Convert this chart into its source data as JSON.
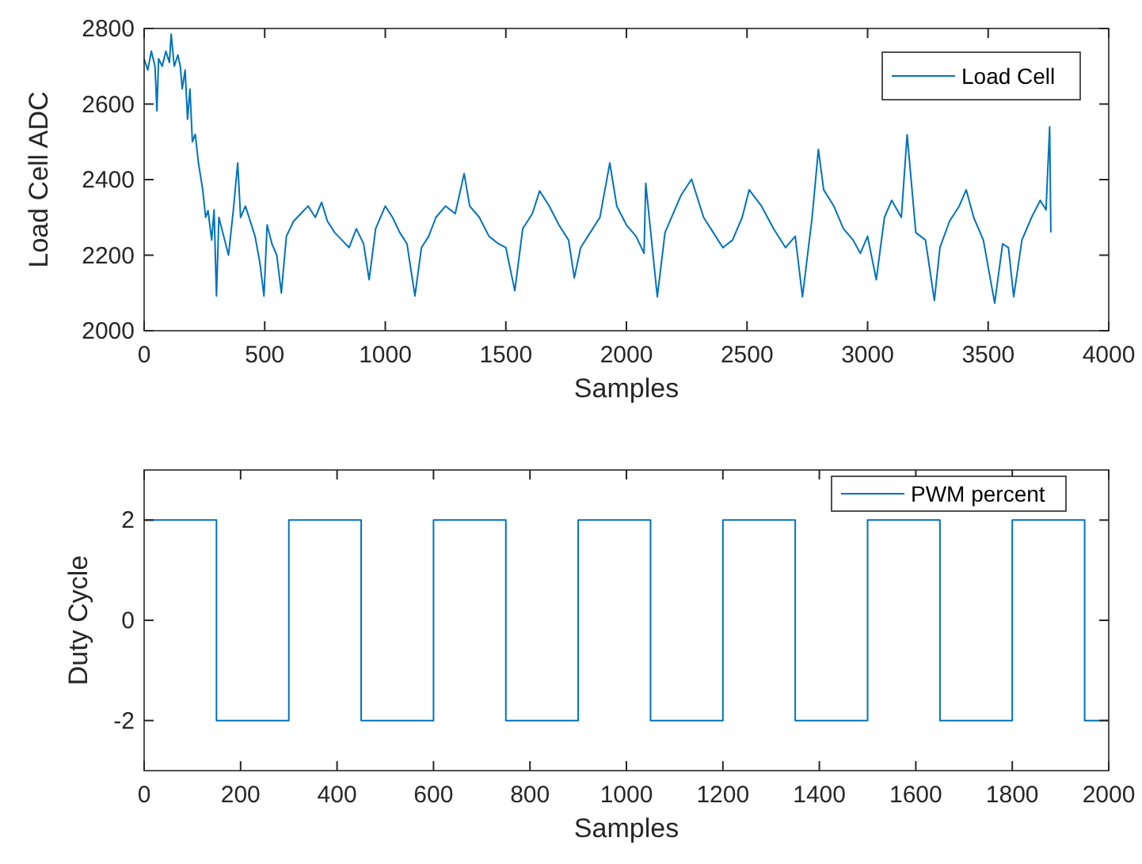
{
  "chart_data": [
    {
      "type": "line",
      "xlabel": "Samples",
      "ylabel": "Load Cell ADC",
      "xlim": [
        0,
        4000
      ],
      "ylim": [
        2000,
        2800
      ],
      "xticks": [
        0,
        500,
        1000,
        1500,
        2000,
        2500,
        3000,
        3500,
        4000
      ],
      "yticks": [
        2000,
        2200,
        2400,
        2600,
        2800
      ],
      "grid": false,
      "legend": "top right",
      "series": [
        {
          "name": "Load Cell",
          "color": "#0072bd",
          "x": [
            0,
            15,
            30,
            45,
            53,
            60,
            75,
            90,
            105,
            112,
            125,
            140,
            150,
            158,
            170,
            180,
            190,
            200,
            212,
            225,
            243,
            255,
            265,
            280,
            290,
            300,
            310,
            330,
            350,
            370,
            388,
            400,
            420,
            440,
            460,
            480,
            497,
            510,
            530,
            550,
            569,
            590,
            620,
            650,
            680,
            710,
            736,
            760,
            790,
            820,
            850,
            880,
            910,
            933,
            960,
            1000,
            1030,
            1060,
            1090,
            1123,
            1150,
            1180,
            1210,
            1250,
            1290,
            1327,
            1350,
            1390,
            1430,
            1470,
            1500,
            1537,
            1570,
            1610,
            1640,
            1680,
            1720,
            1760,
            1784,
            1810,
            1850,
            1890,
            1931,
            1960,
            2000,
            2040,
            2073,
            2080,
            2128,
            2160,
            2226,
            2270,
            2320,
            2360,
            2400,
            2440,
            2480,
            2509,
            2560,
            2610,
            2660,
            2700,
            2730,
            2770,
            2796,
            2818,
            2860,
            2900,
            2940,
            2970,
            3000,
            3036,
            3070,
            3100,
            3140,
            3164,
            3200,
            3240,
            3277,
            3300,
            3340,
            3380,
            3409,
            3440,
            3480,
            3527,
            3560,
            3584,
            3606,
            3640,
            3680,
            3716,
            3740,
            3755,
            3760
          ],
          "values": [
            2720,
            2690,
            2740,
            2700,
            2582,
            2720,
            2700,
            2740,
            2710,
            2785,
            2700,
            2730,
            2700,
            2640,
            2690,
            2560,
            2640,
            2500,
            2520,
            2445,
            2373,
            2300,
            2318,
            2240,
            2320,
            2092,
            2300,
            2250,
            2200,
            2320,
            2444,
            2300,
            2330,
            2290,
            2250,
            2180,
            2092,
            2280,
            2230,
            2200,
            2100,
            2250,
            2290,
            2310,
            2330,
            2300,
            2340,
            2290,
            2260,
            2240,
            2220,
            2270,
            2230,
            2135,
            2270,
            2330,
            2300,
            2260,
            2230,
            2092,
            2220,
            2250,
            2300,
            2330,
            2310,
            2416,
            2330,
            2300,
            2250,
            2230,
            2220,
            2106,
            2270,
            2310,
            2370,
            2330,
            2280,
            2240,
            2140,
            2220,
            2260,
            2300,
            2444,
            2330,
            2280,
            2250,
            2205,
            2390,
            2090,
            2260,
            2358,
            2401,
            2300,
            2260,
            2220,
            2240,
            2300,
            2373,
            2330,
            2270,
            2220,
            2250,
            2090,
            2300,
            2480,
            2373,
            2330,
            2270,
            2240,
            2205,
            2250,
            2135,
            2300,
            2345,
            2300,
            2519,
            2260,
            2240,
            2080,
            2220,
            2290,
            2330,
            2373,
            2300,
            2240,
            2073,
            2230,
            2220,
            2090,
            2240,
            2300,
            2345,
            2320,
            2540,
            2260
          ]
        }
      ]
    },
    {
      "type": "step",
      "xlabel": "Samples",
      "ylabel": "Duty Cycle",
      "xlim": [
        0,
        2000
      ],
      "ylim": [
        -3,
        3
      ],
      "xticks": [
        0,
        200,
        400,
        600,
        800,
        1000,
        1200,
        1400,
        1600,
        1800,
        2000
      ],
      "yticks": [
        -2,
        0,
        2
      ],
      "grid": false,
      "legend": "top right",
      "series": [
        {
          "name": "PWM percent",
          "color": "#0072bd",
          "x": [
            0,
            150,
            300,
            450,
            600,
            750,
            900,
            1050,
            1200,
            1350,
            1500,
            1650,
            1800,
            1950,
            1999
          ],
          "values": [
            2,
            -2,
            2,
            -2,
            2,
            -2,
            2,
            -2,
            2,
            -2,
            2,
            -2,
            2,
            -2,
            -2
          ]
        }
      ]
    }
  ]
}
